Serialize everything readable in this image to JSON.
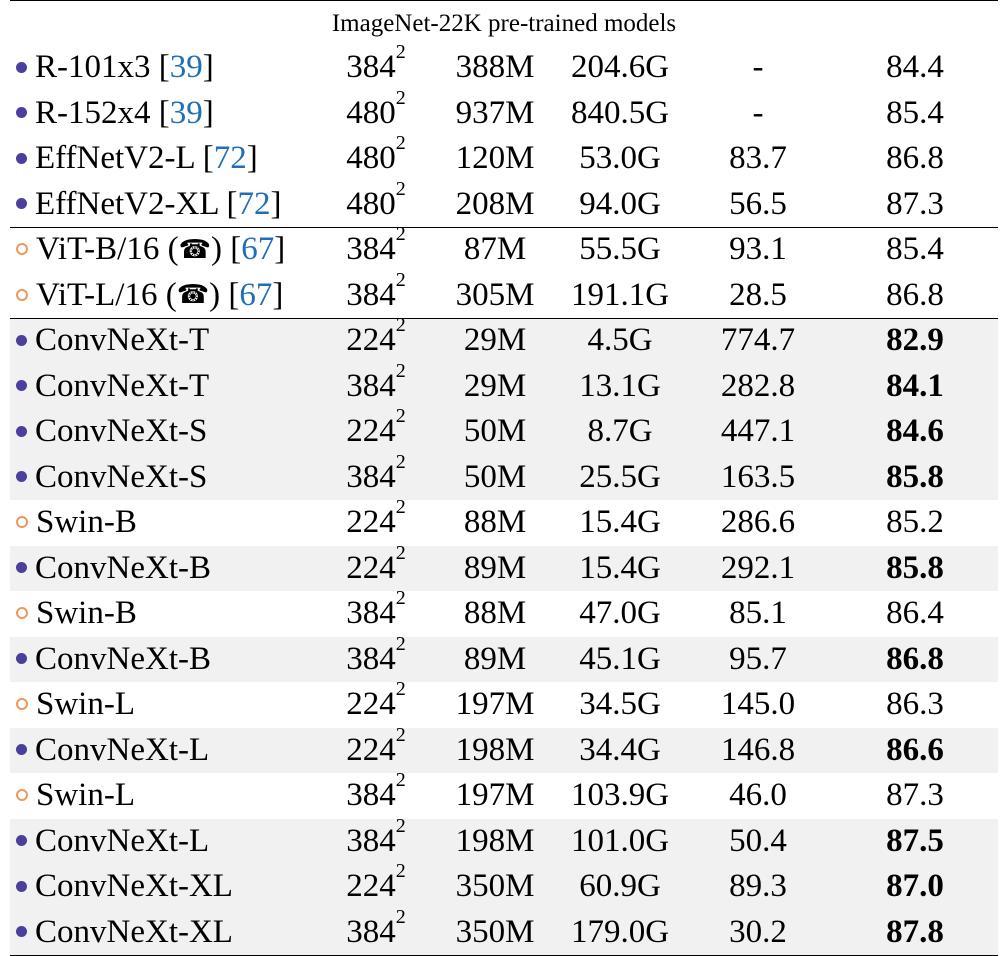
{
  "caption": "ImageNet-22K pre-trained models",
  "colors": {
    "convnet_marker": "#4a3f9c",
    "transformer_marker": "#e89a60",
    "reference": "#1f6fb8",
    "shaded_row": "#f1f1f1"
  },
  "rows": [
    {
      "marker": "filled-circle-icon",
      "model": "R-101x3",
      "tag": "",
      "ref": "39",
      "res": "384",
      "params": "388M",
      "flops": "204.6G",
      "throughput": "-",
      "acc": "84.4",
      "bold": false
    },
    {
      "marker": "filled-circle-icon",
      "model": "R-152x4",
      "tag": "",
      "ref": "39",
      "res": "480",
      "params": "937M",
      "flops": "840.5G",
      "throughput": "-",
      "acc": "85.4",
      "bold": false
    },
    {
      "marker": "filled-circle-icon",
      "model": "EffNetV2-L",
      "tag": "",
      "ref": "72",
      "res": "480",
      "params": "120M",
      "flops": "53.0G",
      "throughput": "83.7",
      "acc": "86.8",
      "bold": false
    },
    {
      "marker": "filled-circle-icon",
      "model": "EffNetV2-XL",
      "tag": "",
      "ref": "72",
      "res": "480",
      "params": "208M",
      "flops": "94.0G",
      "throughput": "56.5",
      "acc": "87.3",
      "bold": false
    },
    {
      "marker": "open-circle-icon",
      "model": "ViT-B/16 (",
      "tag": "☎",
      "ref": "67",
      "res": "384",
      "params": "87M",
      "flops": "55.5G",
      "throughput": "93.1",
      "acc": "85.4",
      "bold": false
    },
    {
      "marker": "open-circle-icon",
      "model": "ViT-L/16 (",
      "tag": "☎",
      "ref": "67",
      "res": "384",
      "params": "305M",
      "flops": "191.1G",
      "throughput": "28.5",
      "acc": "86.8",
      "bold": false
    },
    {
      "marker": "filled-circle-icon",
      "model": "ConvNeXt-T",
      "tag": "",
      "ref": "",
      "res": "224",
      "params": "29M",
      "flops": "4.5G",
      "throughput": "774.7",
      "acc": "82.9",
      "bold": true
    },
    {
      "marker": "filled-circle-icon",
      "model": "ConvNeXt-T",
      "tag": "",
      "ref": "",
      "res": "384",
      "params": "29M",
      "flops": "13.1G",
      "throughput": "282.8",
      "acc": "84.1",
      "bold": true
    },
    {
      "marker": "filled-circle-icon",
      "model": "ConvNeXt-S",
      "tag": "",
      "ref": "",
      "res": "224",
      "params": "50M",
      "flops": "8.7G",
      "throughput": "447.1",
      "acc": "84.6",
      "bold": true
    },
    {
      "marker": "filled-circle-icon",
      "model": "ConvNeXt-S",
      "tag": "",
      "ref": "",
      "res": "384",
      "params": "50M",
      "flops": "25.5G",
      "throughput": "163.5",
      "acc": "85.8",
      "bold": true
    },
    {
      "marker": "open-circle-icon",
      "model": "Swin-B",
      "tag": "",
      "ref": "",
      "res": "224",
      "params": "88M",
      "flops": "15.4G",
      "throughput": "286.6",
      "acc": "85.2",
      "bold": false
    },
    {
      "marker": "filled-circle-icon",
      "model": "ConvNeXt-B",
      "tag": "",
      "ref": "",
      "res": "224",
      "params": "89M",
      "flops": "15.4G",
      "throughput": "292.1",
      "acc": "85.8",
      "bold": true
    },
    {
      "marker": "open-circle-icon",
      "model": "Swin-B",
      "tag": "",
      "ref": "",
      "res": "384",
      "params": "88M",
      "flops": "47.0G",
      "throughput": "85.1",
      "acc": "86.4",
      "bold": false
    },
    {
      "marker": "filled-circle-icon",
      "model": "ConvNeXt-B",
      "tag": "",
      "ref": "",
      "res": "384",
      "params": "89M",
      "flops": "45.1G",
      "throughput": "95.7",
      "acc": "86.8",
      "bold": true
    },
    {
      "marker": "open-circle-icon",
      "model": "Swin-L",
      "tag": "",
      "ref": "",
      "res": "224",
      "params": "197M",
      "flops": "34.5G",
      "throughput": "145.0",
      "acc": "86.3",
      "bold": false
    },
    {
      "marker": "filled-circle-icon",
      "model": "ConvNeXt-L",
      "tag": "",
      "ref": "",
      "res": "224",
      "params": "198M",
      "flops": "34.4G",
      "throughput": "146.8",
      "acc": "86.6",
      "bold": true
    },
    {
      "marker": "open-circle-icon",
      "model": "Swin-L",
      "tag": "",
      "ref": "",
      "res": "384",
      "params": "197M",
      "flops": "103.9G",
      "throughput": "46.0",
      "acc": "87.3",
      "bold": false
    },
    {
      "marker": "filled-circle-icon",
      "model": "ConvNeXt-L",
      "tag": "",
      "ref": "",
      "res": "384",
      "params": "198M",
      "flops": "101.0G",
      "throughput": "50.4",
      "acc": "87.5",
      "bold": true
    },
    {
      "marker": "filled-circle-icon",
      "model": "ConvNeXt-XL",
      "tag": "",
      "ref": "",
      "res": "224",
      "params": "350M",
      "flops": "60.9G",
      "throughput": "89.3",
      "acc": "87.0",
      "bold": true
    },
    {
      "marker": "filled-circle-icon",
      "model": "ConvNeXt-XL",
      "tag": "",
      "ref": "",
      "res": "384",
      "params": "350M",
      "flops": "179.0G",
      "throughput": "30.2",
      "acc": "87.8",
      "bold": true
    }
  ],
  "resolution_exponent": "2"
}
